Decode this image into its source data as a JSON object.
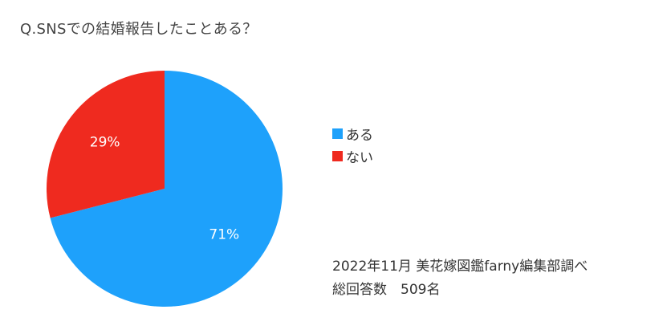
{
  "chart_data": {
    "type": "pie",
    "title": "Q.SNSでの結婚報告したことある？",
    "slices": [
      {
        "label": "ある",
        "value": 71,
        "display": "71%",
        "color": "#1EA1FB"
      },
      {
        "label": "ない",
        "value": 29,
        "display": "29%",
        "color": "#EF2A1F"
      }
    ],
    "start_angle_deg": 0,
    "direction": "clockwise",
    "legend_position": "right",
    "legend": [
      "ある",
      "ない"
    ]
  },
  "source_note": {
    "line1": "2022年11月 美花嫁図鑑farny編集部調べ",
    "line2": "総回答数　509名"
  }
}
